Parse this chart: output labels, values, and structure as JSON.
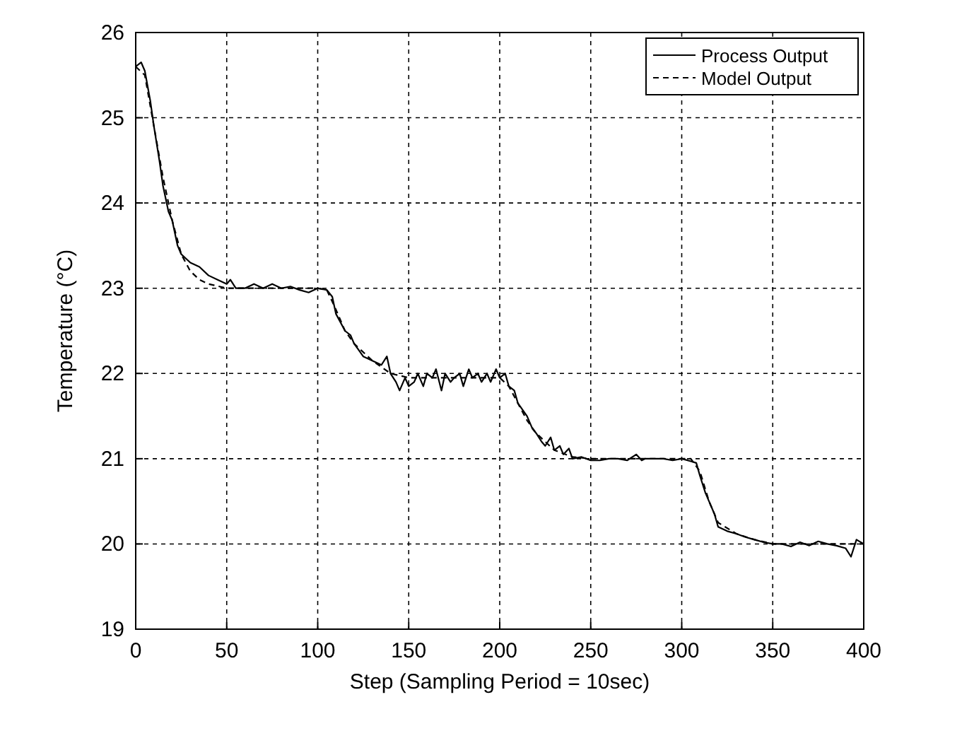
{
  "chart_data": {
    "type": "line",
    "xlabel": "Step (Sampling Period = 10sec)",
    "ylabel": "Temperature (°C)",
    "xlim": [
      0,
      400
    ],
    "xticks": [
      0,
      50,
      100,
      150,
      200,
      250,
      300,
      350,
      400
    ],
    "ylim": [
      19,
      26
    ],
    "yticks": [
      19,
      20,
      21,
      22,
      23,
      24,
      25,
      26
    ],
    "grid": true,
    "legend": "top right",
    "series": [
      {
        "name": "Process Output",
        "color": "#000000",
        "line_style": "solid",
        "x": [
          0,
          3,
          5,
          8,
          10,
          13,
          15,
          18,
          20,
          23,
          25,
          30,
          35,
          40,
          45,
          50,
          52,
          55,
          60,
          65,
          70,
          75,
          80,
          85,
          90,
          95,
          100,
          105,
          108,
          110,
          115,
          118,
          120,
          125,
          130,
          135,
          138,
          140,
          143,
          145,
          148,
          150,
          153,
          155,
          158,
          160,
          163,
          165,
          168,
          170,
          173,
          175,
          178,
          180,
          183,
          185,
          188,
          190,
          193,
          195,
          198,
          200,
          203,
          205,
          208,
          210,
          215,
          218,
          220,
          223,
          225,
          228,
          230,
          233,
          235,
          238,
          240,
          245,
          250,
          255,
          260,
          265,
          270,
          275,
          278,
          280,
          285,
          290,
          295,
          300,
          305,
          308,
          310,
          313,
          315,
          318,
          320,
          325,
          330,
          335,
          340,
          345,
          350,
          355,
          360,
          365,
          370,
          375,
          380,
          385,
          390,
          393,
          396,
          400
        ],
        "values": [
          25.6,
          25.65,
          25.55,
          25.2,
          24.9,
          24.5,
          24.2,
          23.9,
          23.8,
          23.5,
          23.4,
          23.3,
          23.25,
          23.15,
          23.1,
          23.05,
          23.1,
          23.0,
          23.0,
          23.05,
          23.0,
          23.05,
          23.0,
          23.02,
          22.98,
          22.95,
          23.0,
          22.98,
          22.9,
          22.7,
          22.5,
          22.45,
          22.35,
          22.2,
          22.15,
          22.1,
          22.2,
          22.0,
          21.9,
          21.8,
          21.95,
          21.85,
          21.9,
          22.0,
          21.85,
          22.0,
          21.95,
          22.05,
          21.8,
          22.0,
          21.9,
          21.95,
          22.0,
          21.85,
          22.05,
          21.95,
          22.0,
          21.9,
          22.0,
          21.9,
          22.05,
          21.95,
          22.0,
          21.85,
          21.8,
          21.65,
          21.5,
          21.35,
          21.3,
          21.2,
          21.15,
          21.25,
          21.1,
          21.15,
          21.05,
          21.12,
          21.0,
          21.02,
          20.98,
          20.98,
          21.0,
          21.0,
          20.98,
          21.05,
          20.98,
          21.0,
          21.0,
          21.0,
          20.98,
          21.0,
          20.97,
          20.95,
          20.8,
          20.6,
          20.5,
          20.35,
          20.2,
          20.15,
          20.12,
          20.08,
          20.05,
          20.02,
          20.0,
          20.0,
          19.97,
          20.02,
          19.98,
          20.03,
          20.0,
          19.98,
          19.95,
          19.85,
          20.05,
          20.0
        ]
      },
      {
        "name": "Model Output",
        "color": "#000000",
        "line_style": "dashed",
        "x": [
          0,
          5,
          10,
          15,
          20,
          25,
          30,
          35,
          40,
          50,
          100,
          105,
          110,
          115,
          120,
          130,
          140,
          150,
          200,
          205,
          210,
          215,
          220,
          230,
          240,
          250,
          305,
          310,
          315,
          320,
          330,
          340,
          350,
          400
        ],
        "values": [
          25.6,
          25.5,
          24.9,
          24.3,
          23.8,
          23.4,
          23.2,
          23.1,
          23.05,
          23.0,
          23.0,
          22.98,
          22.75,
          22.5,
          22.35,
          22.15,
          22.0,
          21.95,
          21.95,
          21.85,
          21.65,
          21.45,
          21.3,
          21.1,
          21.02,
          21.0,
          21.0,
          20.85,
          20.5,
          20.25,
          20.12,
          20.05,
          20.0,
          20.0
        ]
      }
    ]
  }
}
